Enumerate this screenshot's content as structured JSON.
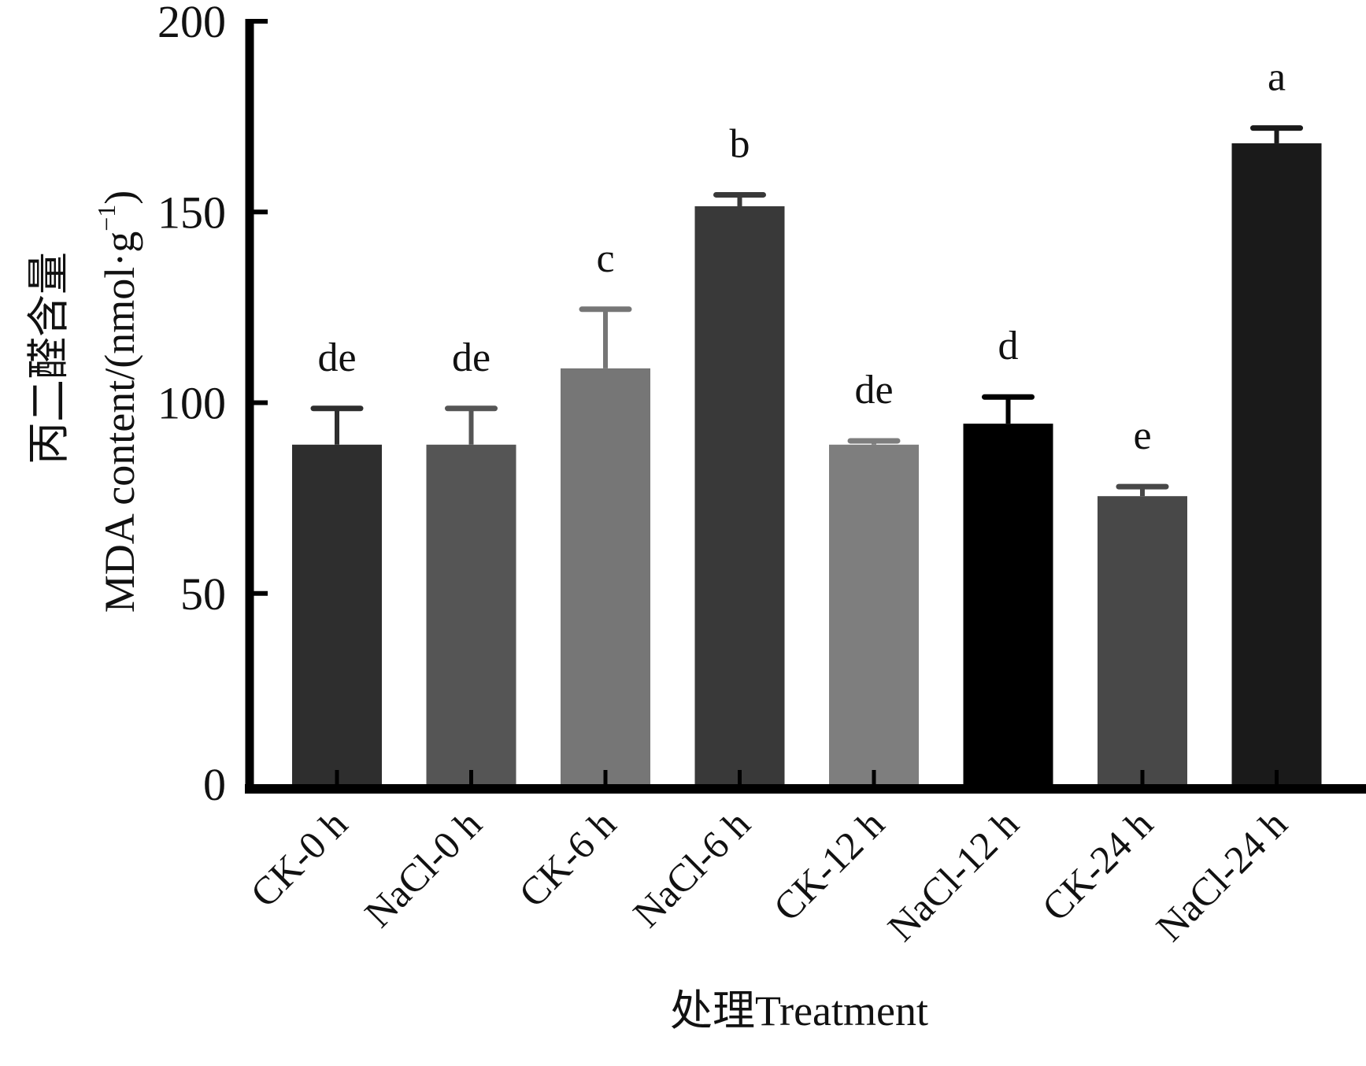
{
  "chart_data": {
    "type": "bar",
    "title": "",
    "xlabel": "处理Treatment",
    "ylabel_cn": "丙二醛含量",
    "ylabel_en": "MDA content/(nmol·g",
    "ylabel_sup": "−1",
    "ylabel_close": ")",
    "ylim": [
      0,
      200
    ],
    "yticks": [
      0,
      50,
      100,
      150,
      200
    ],
    "ytick_labels": [
      "0",
      "50",
      "100",
      "150",
      "200"
    ],
    "grid": false,
    "legend": "none",
    "categories": [
      "CK-0 h",
      "NaCl-0 h",
      "CK-6 h",
      "NaCl-6 h",
      "CK-12 h",
      "NaCl-12 h",
      "CK-24 h",
      "NaCl-24 h"
    ],
    "values": [
      89,
      89,
      109,
      151.5,
      89,
      94.5,
      75.5,
      168
    ],
    "errors": [
      9.5,
      9.5,
      15.5,
      3,
      1,
      7,
      2.5,
      4
    ],
    "significance": [
      "de",
      "de",
      "c",
      "b",
      "de",
      "d",
      "e",
      "a"
    ],
    "colors": [
      "#2e2e2e",
      "#555555",
      "#767676",
      "#393939",
      "#7e7e7e",
      "#000000",
      "#484848",
      "#1a1a1a"
    ]
  }
}
